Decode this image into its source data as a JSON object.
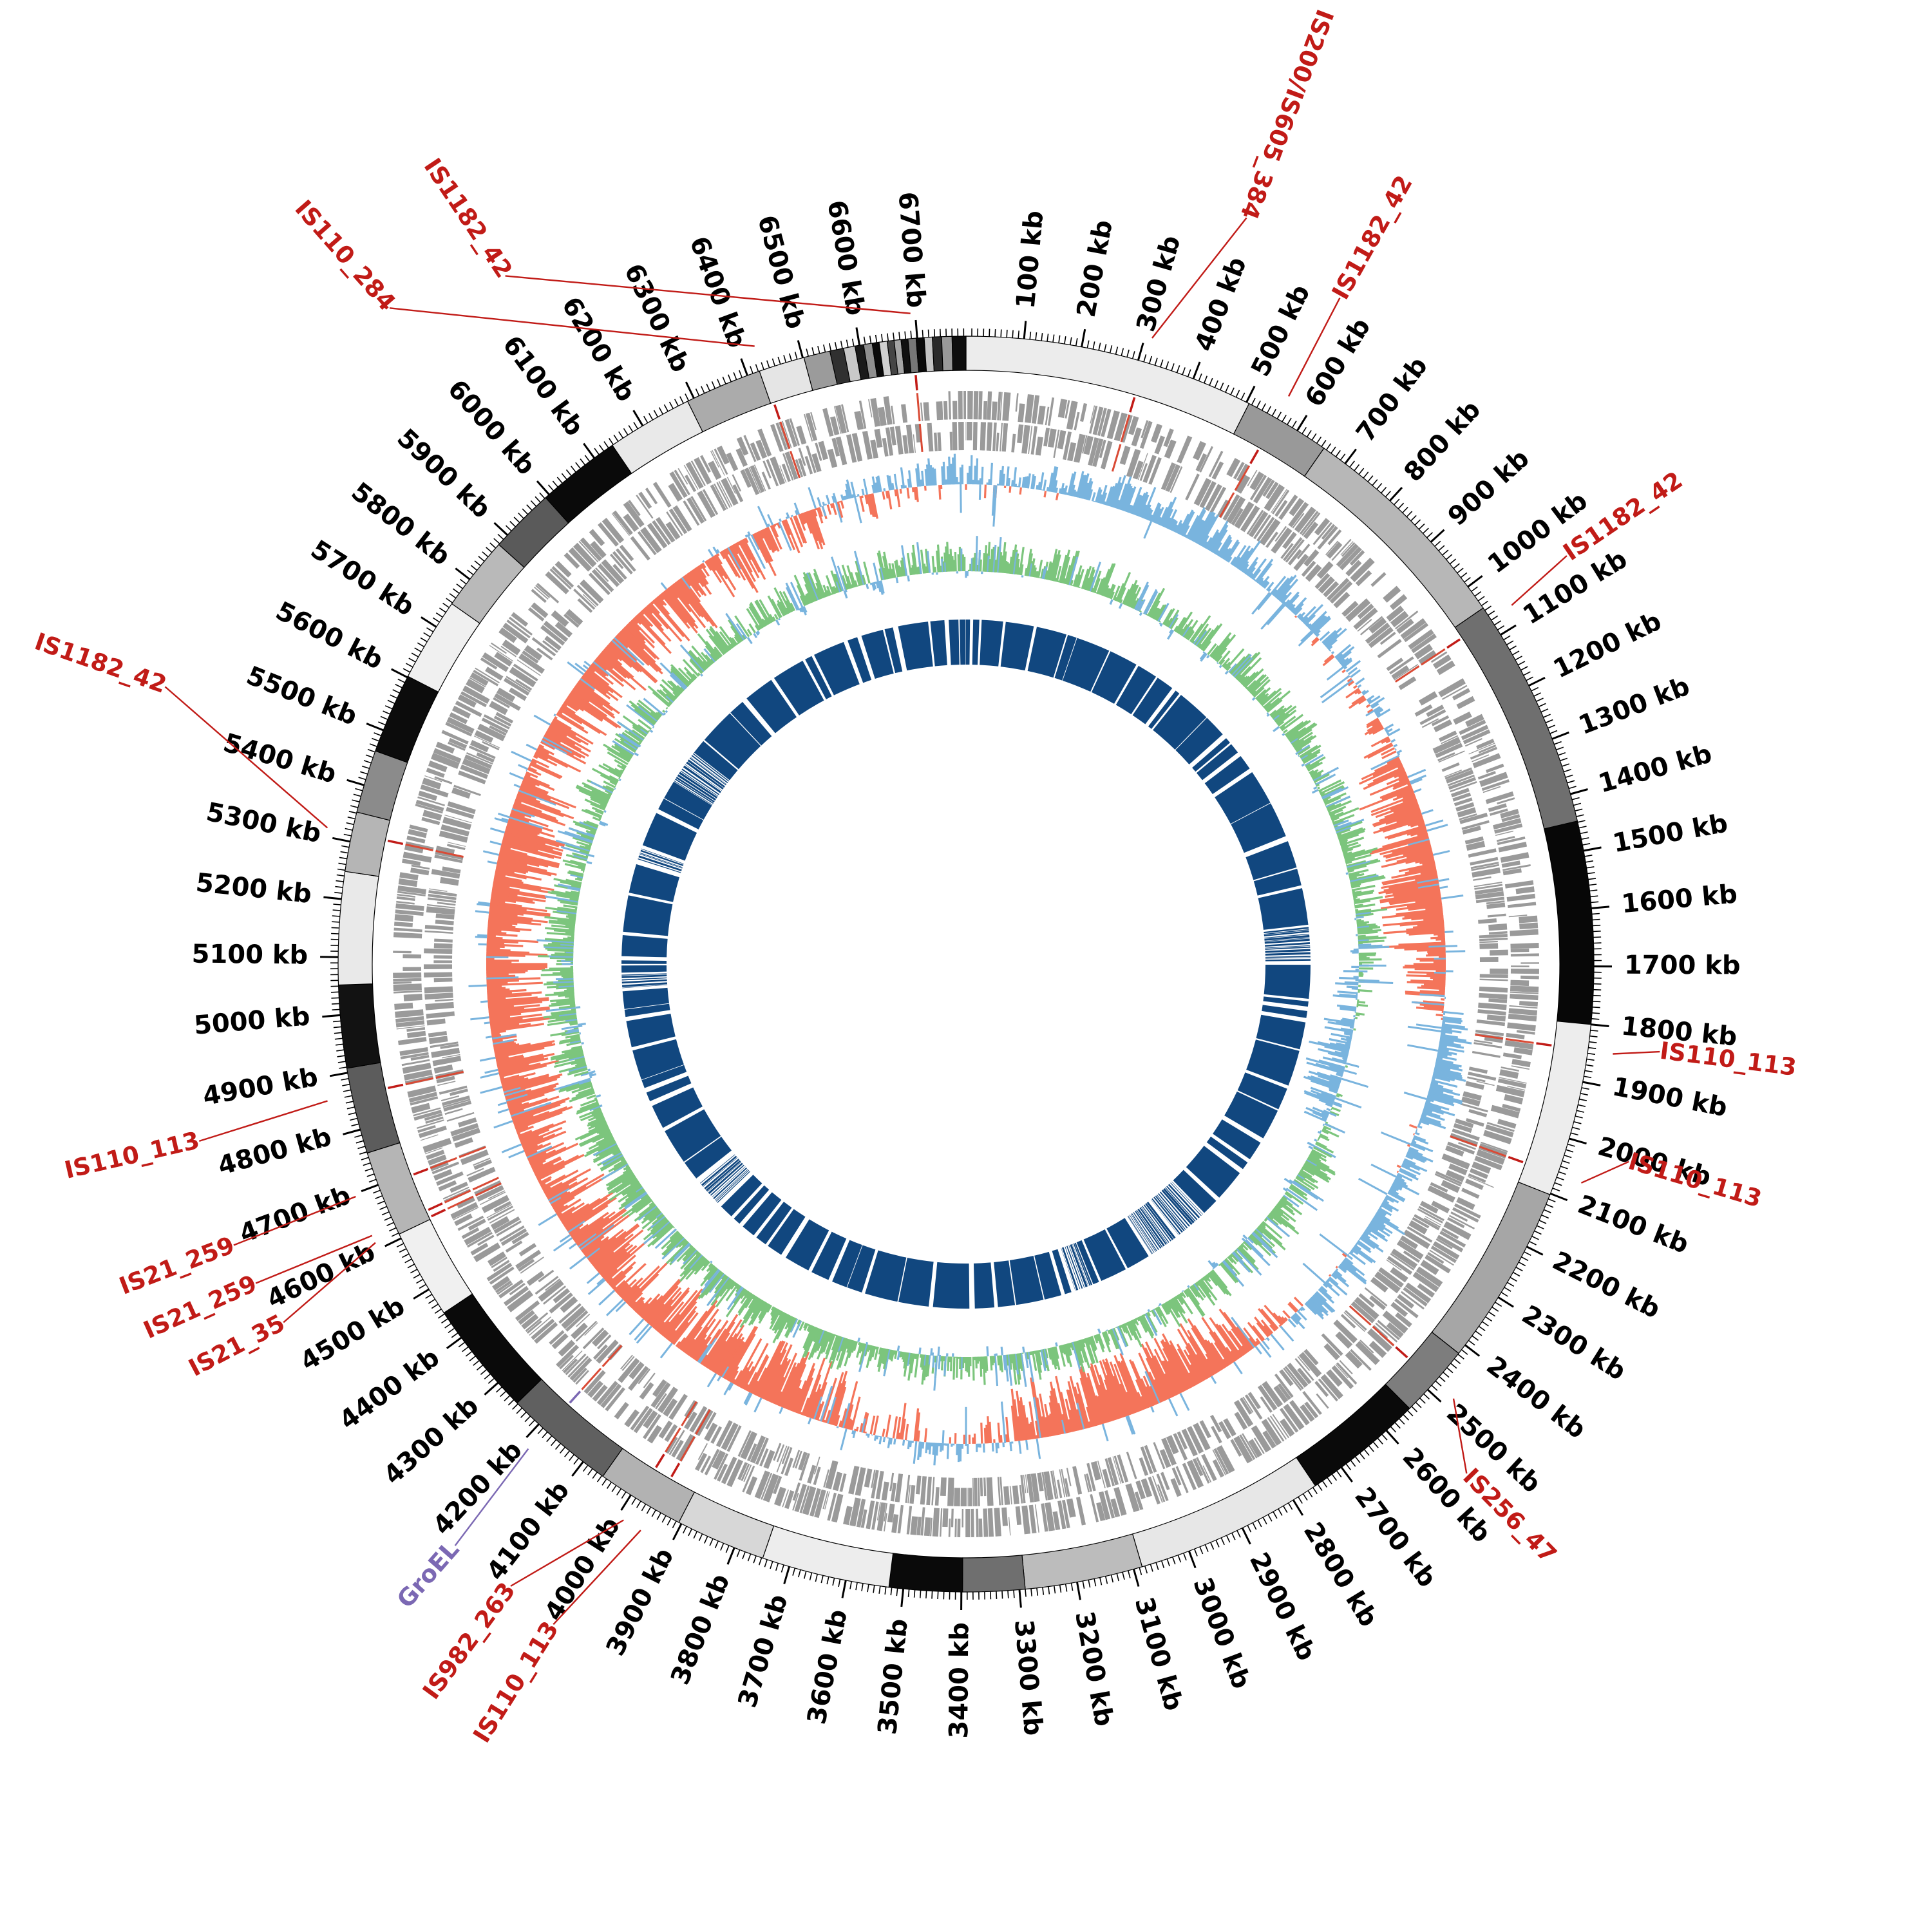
{
  "chart_data": {
    "type": "circular-genome",
    "title": "",
    "genome_length_kb": 6784,
    "tick_unit": "kb",
    "major_tick_interval_kb": 100,
    "minor_tick_interval_kb": 10,
    "tick_labels": [
      "100 kb",
      "200 kb",
      "300 kb",
      "400 kb",
      "500 kb",
      "600 kb",
      "700 kb",
      "800 kb",
      "900 kb",
      "1000 kb",
      "1100 kb",
      "1200 kb",
      "1300 kb",
      "1400 kb",
      "1500 kb",
      "1600 kb",
      "1700 kb",
      "1800 kb",
      "1900 kb",
      "2000 kb",
      "2100 kb",
      "2200 kb",
      "2300 kb",
      "2400 kb",
      "2500 kb",
      "2600 kb",
      "2700 kb",
      "2800 kb",
      "2900 kb",
      "3000 kb",
      "3100 kb",
      "3200 kb",
      "3300 kb",
      "3400 kb",
      "3500 kb",
      "3600 kb",
      "3700 kb",
      "3800 kb",
      "3900 kb",
      "4000 kb",
      "4100 kb",
      "4200 kb",
      "4300 kb",
      "4400 kb",
      "4500 kb",
      "4600 kb",
      "4700 kb",
      "4800 kb",
      "4900 kb",
      "5000 kb",
      "5100 kb",
      "5200 kb",
      "5300 kb",
      "5400 kb",
      "5500 kb",
      "5600 kb",
      "5700 kb",
      "5800 kb",
      "5900 kb",
      "6000 kb",
      "6100 kb",
      "6200 kb",
      "6300 kb",
      "6400 kb",
      "6500 kb",
      "6600 kb",
      "6700 kb"
    ],
    "colors": {
      "tick_label": "#000000",
      "annotation_red": "#c11b17",
      "annotation_purple": "#7b68b3",
      "gene_bar": "#9a9a9a",
      "gene_is_mark": "#d94a35",
      "skew_positive_blue": "#79b4de",
      "skew_negative_salmon": "#f4745a",
      "content_positive_green": "#7cc57d",
      "content_negative_blue": "#79b4de",
      "core_ring_navy": "#11477f",
      "ideogram_stroke": "#000000"
    },
    "annotations": [
      {
        "label": "IS110_284",
        "pos_kb": 6428,
        "label_angle_deg": 318.7,
        "label_radius": 1356,
        "flip": true,
        "color": "#c11b17"
      },
      {
        "label": "IS1182_42",
        "pos_kb": 6692,
        "label_angle_deg": 326.2,
        "label_radius": 1286,
        "flip": true,
        "color": "#c11b17"
      },
      {
        "label": "IS200/IS605_384",
        "pos_kb": 312,
        "label_angle_deg": 20.6,
        "label_radius": 1238,
        "flip": true,
        "color": "#c11b17"
      },
      {
        "label": "IS1182_42",
        "pos_kb": 558,
        "label_angle_deg": 29.3,
        "label_radius": 1186,
        "flip": false,
        "color": "#c11b17"
      },
      {
        "label": "IS1182_42",
        "pos_kb": 1068,
        "label_angle_deg": 55.8,
        "label_radius": 1128,
        "flip": false,
        "color": "#c11b17"
      },
      {
        "label": "IS110_113",
        "pos_kb": 1845,
        "label_angle_deg": 97.2,
        "label_radius": 1086,
        "flip": false,
        "color": "#c11b17"
      },
      {
        "label": "IS110_113",
        "pos_kb": 2065,
        "label_angle_deg": 106.6,
        "label_radius": 1074,
        "flip": false,
        "color": "#c11b17"
      },
      {
        "label": "IS256_47",
        "pos_kb": 2482,
        "label_angle_deg": 135.5,
        "label_radius": 1109,
        "flip": false,
        "color": "#c11b17"
      },
      {
        "label": "IS110_113",
        "pos_kb": 3955,
        "label_angle_deg": 212.0,
        "label_radius": 1209,
        "flip": true,
        "color": "#c11b17"
      },
      {
        "label": "IS982_263",
        "pos_kb": 3988,
        "label_angle_deg": 216.2,
        "label_radius": 1197,
        "flip": true,
        "color": "#c11b17"
      },
      {
        "label": "GroEL",
        "pos_kb": 4185,
        "label_angle_deg": 221.3,
        "label_radius": 1202,
        "flip": true,
        "color": "#7b68b3"
      },
      {
        "label": "IS21_35",
        "pos_kb": 4612,
        "label_angle_deg": 242.3,
        "label_radius": 1197,
        "flip": true,
        "color": "#c11b17"
      },
      {
        "label": "IS21_259",
        "pos_kb": 4625,
        "label_angle_deg": 245.8,
        "label_radius": 1209,
        "flip": true,
        "color": "#c11b17"
      },
      {
        "label": "IS21_259",
        "pos_kb": 4695,
        "label_angle_deg": 249.0,
        "label_radius": 1218,
        "flip": true,
        "color": "#c11b17"
      },
      {
        "label": "IS110_113",
        "pos_kb": 4860,
        "label_angle_deg": 257.0,
        "label_radius": 1222,
        "flip": true,
        "color": "#c11b17"
      },
      {
        "label": "IS1182_42",
        "pos_kb": 5315,
        "label_angle_deg": 289.1,
        "label_radius": 1316,
        "flip": true,
        "color": "#c11b17"
      }
    ],
    "ideogram_segments": [
      [
        0,
        505,
        "#ececec"
      ],
      [
        505,
        655,
        "#999999"
      ],
      [
        655,
        1045,
        "#b7b7b7"
      ],
      [
        1045,
        1448,
        "#6f6f6f"
      ],
      [
        1448,
        1800,
        "#070707"
      ],
      [
        1800,
        2102,
        "#ededed"
      ],
      [
        2102,
        2418,
        "#a6a6a6"
      ],
      [
        2418,
        2545,
        "#7d7d7d"
      ],
      [
        2545,
        2755,
        "#0a0a0a"
      ],
      [
        2755,
        3085,
        "#e7e7e7"
      ],
      [
        3085,
        3290,
        "#bcbcbc"
      ],
      [
        3290,
        3398,
        "#6f6f6f"
      ],
      [
        3398,
        3525,
        "#0a0a0a"
      ],
      [
        3525,
        3748,
        "#ededed"
      ],
      [
        3748,
        3905,
        "#d7d7d7"
      ],
      [
        3905,
        4058,
        "#b2b2b2"
      ],
      [
        4058,
        4252,
        "#606060"
      ],
      [
        4252,
        4452,
        "#0a0a0a"
      ],
      [
        4452,
        4608,
        "#f0f0f0"
      ],
      [
        4608,
        4758,
        "#b5b5b5"
      ],
      [
        4758,
        4908,
        "#5c5c5c"
      ],
      [
        4908,
        5052,
        "#121212"
      ],
      [
        5052,
        5248,
        "#e9e9e9"
      ],
      [
        5248,
        5352,
        "#b5b5b5"
      ],
      [
        5352,
        5462,
        "#8b8b8b"
      ],
      [
        5462,
        5602,
        "#0c0c0c"
      ],
      [
        5602,
        5748,
        "#f0f0f0"
      ],
      [
        5748,
        5878,
        "#b9b9b9"
      ],
      [
        5878,
        5992,
        "#5a5a5a"
      ],
      [
        5992,
        6138,
        "#0a0a0a"
      ],
      [
        6138,
        6288,
        "#e9e9e9"
      ],
      [
        6288,
        6422,
        "#ababab"
      ],
      [
        6422,
        6502,
        "#e5e5e5"
      ],
      [
        6502,
        6548,
        "#9b9b9b"
      ],
      [
        6548,
        6572,
        "#303030"
      ],
      [
        6572,
        6592,
        "#c9c9c9"
      ],
      [
        6592,
        6607,
        "#1a1a1a"
      ],
      [
        6607,
        6622,
        "#8f8f8f"
      ],
      [
        6622,
        6634,
        "#0a0a0a"
      ],
      [
        6634,
        6648,
        "#d0d0d0"
      ],
      [
        6648,
        6660,
        "#454545"
      ],
      [
        6660,
        6672,
        "#a5a5a5"
      ],
      [
        6672,
        6684,
        "#111111"
      ],
      [
        6684,
        6698,
        "#777777"
      ],
      [
        6698,
        6712,
        "#0a0a0a"
      ],
      [
        6712,
        6726,
        "#c4c4c4"
      ],
      [
        6726,
        6742,
        "#2a2a2a"
      ],
      [
        6742,
        6760,
        "#999999"
      ],
      [
        6760,
        6784,
        "#0e0e0e"
      ]
    ],
    "layout": {
      "center_x": 1500,
      "center_y": 1497,
      "ideogram_r_in": 922,
      "ideogram_r_out": 975,
      "minor_tick_r1": 975,
      "minor_tick_r2": 987,
      "major_tick_r1": 975,
      "major_tick_r2": 1003,
      "tick_label_r": 1022,
      "tick_label_font": 40,
      "annotation_font": 37,
      "annotation_line_r": 1014,
      "mark_r1": 894,
      "mark_r2": 918,
      "gene_fwd_r1": 846,
      "gene_fwd_r2": 890,
      "gene_rev_r1": 798,
      "gene_rev_r2": 842,
      "skew_baseline_r": 745,
      "skew_out_amp": 55,
      "skew_in_amp": 95,
      "content_baseline_r": 610,
      "content_out_amp": 55,
      "content_in_amp": 65,
      "core_r1": 465,
      "core_r2": 535
    },
    "series": [
      {
        "name": "gc_skew_track",
        "legend": "blue outward / salmon inward histogram",
        "sample_step_kb": 4,
        "seed": 101,
        "bias_control_points": [
          [
            0,
            0.3
          ],
          [
            150,
            0.15
          ],
          [
            300,
            0.45
          ],
          [
            500,
            0.5
          ],
          [
            700,
            0.45
          ],
          [
            900,
            0.35
          ],
          [
            1100,
            0.1
          ],
          [
            1250,
            -0.35
          ],
          [
            1400,
            -0.55
          ],
          [
            1600,
            -0.6
          ],
          [
            1750,
            -0.2
          ],
          [
            1850,
            0.35
          ],
          [
            2000,
            0.45
          ],
          [
            2150,
            0.2
          ],
          [
            2300,
            0.4
          ],
          [
            2500,
            0.3
          ],
          [
            2650,
            -0.2
          ],
          [
            2800,
            -0.5
          ],
          [
            3000,
            -0.6
          ],
          [
            3200,
            -0.45
          ],
          [
            3350,
            -0.1
          ],
          [
            3450,
            0.15
          ],
          [
            3550,
            -0.15
          ],
          [
            3700,
            -0.45
          ],
          [
            3900,
            -0.5
          ],
          [
            4100,
            -0.45
          ],
          [
            4300,
            -0.55
          ],
          [
            4500,
            -0.5
          ],
          [
            4700,
            -0.45
          ],
          [
            4900,
            -0.55
          ],
          [
            5100,
            -0.5
          ],
          [
            5300,
            -0.6
          ],
          [
            5500,
            -0.45
          ],
          [
            5700,
            -0.35
          ],
          [
            5900,
            -0.45
          ],
          [
            6100,
            -0.5
          ],
          [
            6300,
            -0.3
          ],
          [
            6450,
            -0.1
          ],
          [
            6600,
            0.2
          ],
          [
            6784,
            0.3
          ]
        ]
      },
      {
        "name": "gc_content_track",
        "legend": "green outward / blue inward histogram",
        "sample_step_kb": 4,
        "seed": 202,
        "bias_control_points": [
          [
            0,
            0.25
          ],
          [
            200,
            0.4
          ],
          [
            400,
            0.35
          ],
          [
            600,
            0.3
          ],
          [
            800,
            0.4
          ],
          [
            1000,
            0.3
          ],
          [
            1200,
            0.35
          ],
          [
            1400,
            0.4
          ],
          [
            1600,
            0.35
          ],
          [
            1800,
            -0.1
          ],
          [
            1950,
            -0.4
          ],
          [
            2100,
            -0.2
          ],
          [
            2250,
            0.3
          ],
          [
            2450,
            0.4
          ],
          [
            2650,
            0.35
          ],
          [
            2850,
            0.3
          ],
          [
            3050,
            0.4
          ],
          [
            3250,
            0.35
          ],
          [
            3400,
            0.2
          ],
          [
            3550,
            0.35
          ],
          [
            3750,
            0.45
          ],
          [
            3950,
            0.5
          ],
          [
            4150,
            0.45
          ],
          [
            4350,
            0.4
          ],
          [
            4550,
            0.45
          ],
          [
            4750,
            0.35
          ],
          [
            4950,
            0.4
          ],
          [
            5150,
            0.45
          ],
          [
            5350,
            0.35
          ],
          [
            5550,
            0.4
          ],
          [
            5750,
            0.3
          ],
          [
            5950,
            0.4
          ],
          [
            6150,
            0.35
          ],
          [
            6350,
            0.3
          ],
          [
            6550,
            0.25
          ],
          [
            6784,
            0.25
          ]
        ]
      },
      {
        "name": "gene_track_forward",
        "legend": "gray CDS blocks, outer strand",
        "seed": 303
      },
      {
        "name": "gene_track_reverse",
        "legend": "gray CDS blocks, inner strand",
        "seed": 404
      },
      {
        "name": "core_ring",
        "legend": "navy presence/absence ring",
        "seed": 505
      }
    ]
  }
}
